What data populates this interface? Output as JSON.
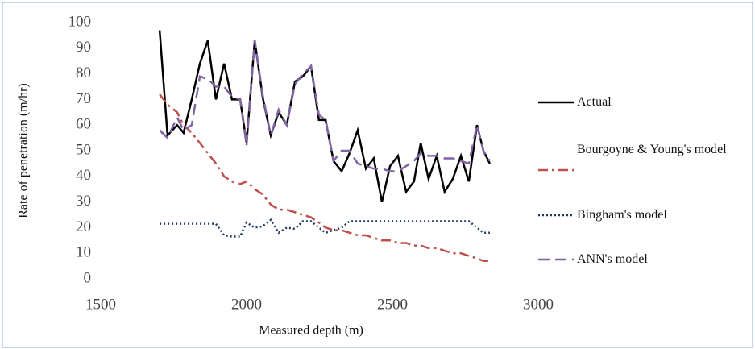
{
  "chart_data": {
    "type": "line",
    "x_label": "Measured depth (m)",
    "y_label": "Rate of penetration (m/hr)",
    "x": [
      1702,
      1729,
      1762,
      1784,
      1812,
      1840,
      1867,
      1895,
      1923,
      1950,
      1978,
      2000,
      2028,
      2055,
      2083,
      2110,
      2138,
      2166,
      2193,
      2221,
      2248,
      2271,
      2298,
      2326,
      2353,
      2381,
      2409,
      2436,
      2464,
      2492,
      2519,
      2547,
      2574,
      2597,
      2624,
      2652,
      2679,
      2707,
      2735,
      2762,
      2790,
      2812,
      2834
    ],
    "series": [
      {
        "name": "Actual",
        "color": "#000000",
        "dash": "solid",
        "values": [
          97,
          56,
          60,
          57,
          70,
          84,
          93,
          70,
          84,
          70,
          70,
          53,
          93,
          71,
          56,
          65,
          60,
          77,
          79,
          83,
          62,
          62,
          46,
          42,
          49,
          58,
          43,
          47,
          30,
          44,
          48,
          34,
          38,
          53,
          39,
          48,
          34,
          39,
          48,
          38,
          60,
          50,
          45
        ]
      },
      {
        "name": "Bourgoyne & Young's model",
        "color": "#C0504D",
        "dash": "dashdot",
        "values": [
          72,
          68,
          65,
          60,
          57,
          53,
          49,
          45,
          40,
          38,
          37,
          38,
          35,
          33,
          29,
          27,
          27,
          26,
          25,
          24,
          22,
          20,
          19,
          19,
          18,
          17,
          17,
          16,
          15,
          15,
          14,
          14,
          13,
          13,
          12,
          12,
          11,
          10,
          10,
          9,
          8,
          7,
          7
        ]
      },
      {
        "name": "Bingham's model",
        "color": "#1F3864",
        "dash": "dot",
        "values": [
          21.5,
          21.5,
          21.5,
          21.5,
          21.5,
          21.5,
          21.5,
          21.5,
          17,
          16.5,
          16.5,
          22,
          20,
          20.5,
          23,
          18,
          20,
          19.5,
          22.5,
          22.5,
          20,
          18,
          19,
          20,
          22.5,
          22.5,
          22.5,
          22.5,
          22.5,
          22.5,
          22.5,
          22.5,
          22.5,
          22.5,
          22.5,
          22.5,
          22.5,
          22.5,
          22.5,
          22.5,
          20,
          18,
          18
        ]
      },
      {
        "name": "ANN's model",
        "color": "#8064A2",
        "dash": "dash",
        "values": [
          58,
          55,
          63,
          58,
          60,
          79,
          78,
          75,
          75,
          71,
          70,
          52,
          93,
          72,
          56,
          66,
          60,
          76,
          80,
          83,
          64,
          62,
          46,
          50,
          50,
          45,
          44,
          43,
          43,
          42,
          42,
          44,
          46,
          49,
          48,
          48,
          47,
          47,
          46,
          45,
          60,
          50,
          46
        ]
      }
    ],
    "xlim": [
      1500,
      3000
    ],
    "xticks": [
      1500,
      2000,
      2500,
      3000
    ],
    "ylim": [
      0,
      100
    ],
    "yticks": [
      0,
      10,
      20,
      30,
      40,
      50,
      60,
      70,
      80,
      90,
      100
    ],
    "grid": false,
    "legend": "right"
  }
}
